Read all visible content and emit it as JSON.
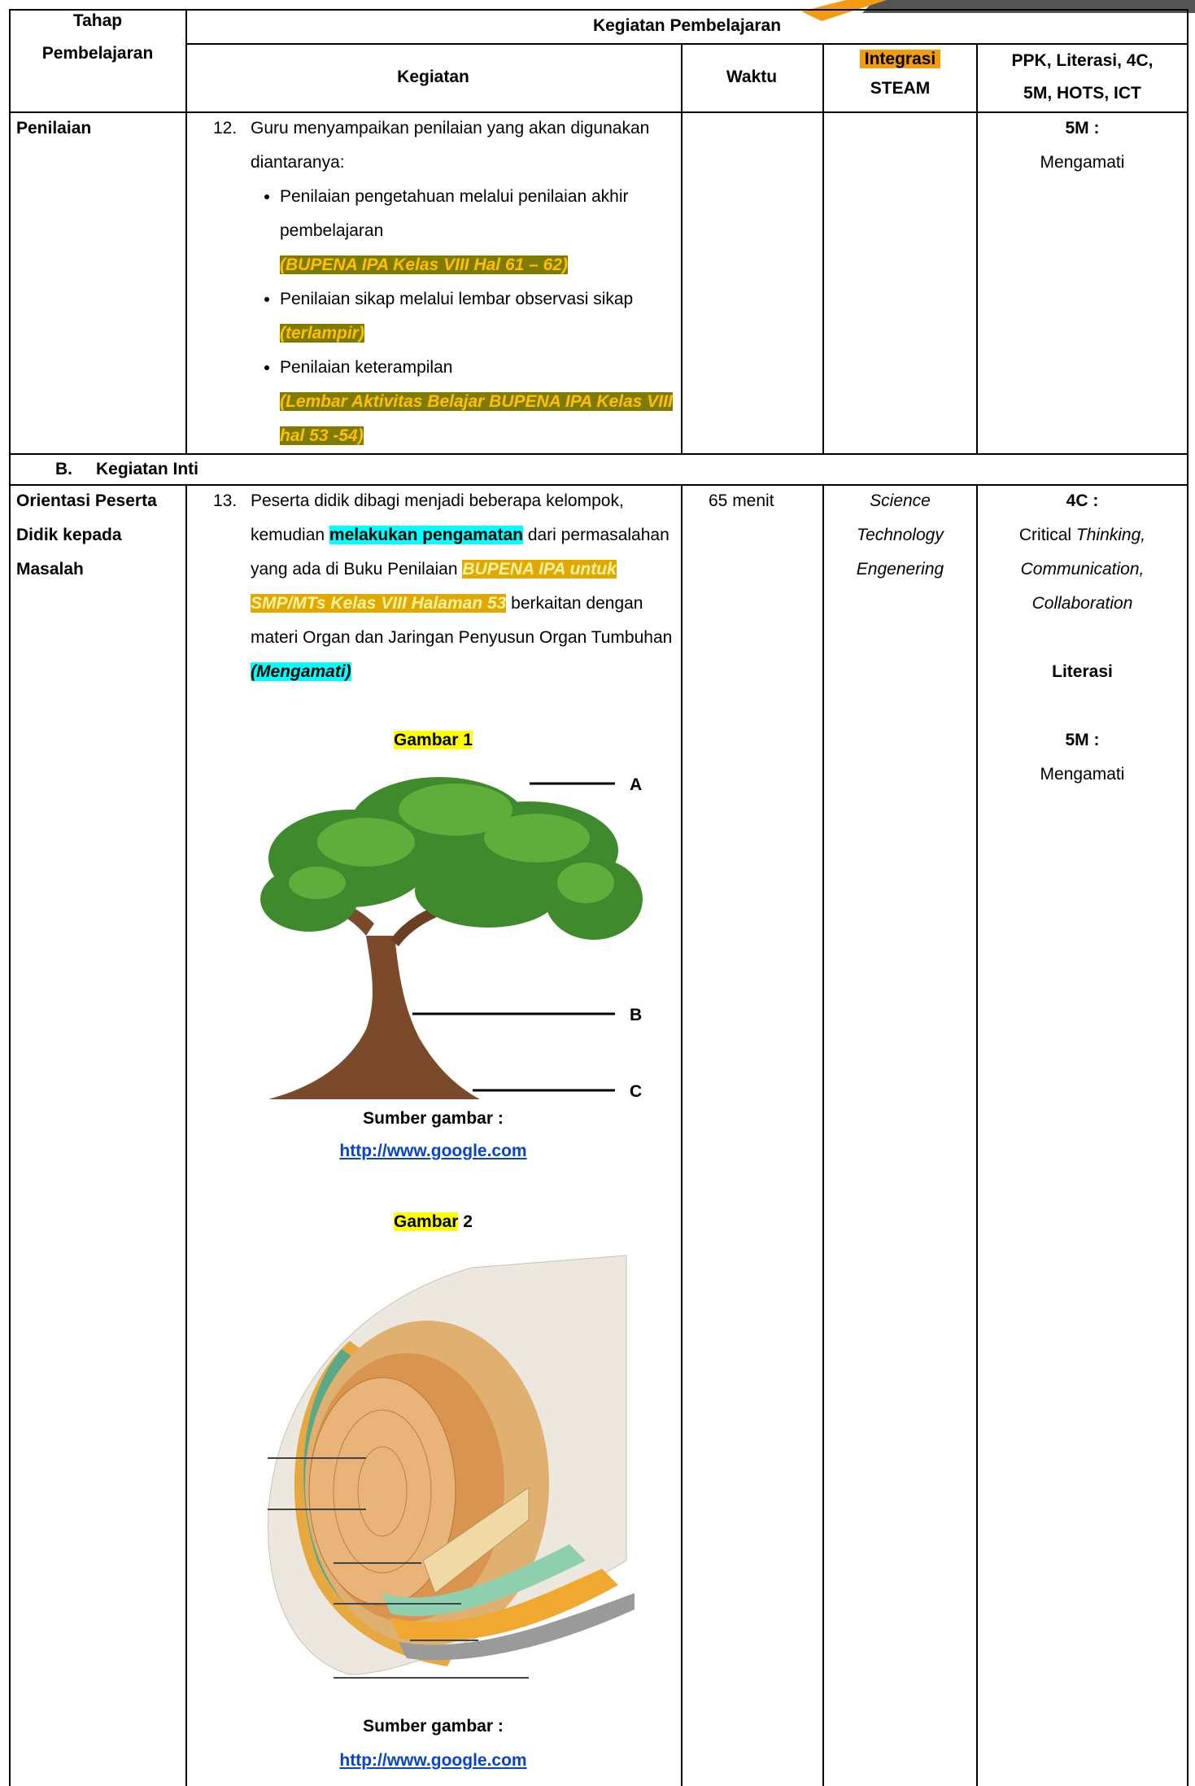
{
  "table": {
    "header": {
      "tahap": "Tahap Pembelajaran",
      "kegiatan_pembelajaran": "Kegiatan Pembelajaran",
      "kegiatan": "Kegiatan",
      "waktu": "Waktu",
      "integrasi": "Integrasi",
      "steam": "STEAM",
      "ppk_1": "PPK, Literasi, 4C,",
      "ppk_2": "5M, HOTS, ICT"
    },
    "penilaian": {
      "stage": "Penilaian",
      "number": "12.",
      "intro": "Guru menyampaikan penilaian yang akan digunakan diantaranya:",
      "bullets": [
        {
          "text": "Penilaian pengetahuan melalui penilaian akhir pembelajaran",
          "ref": "(BUPENA IPA Kelas VIII Hal 61 – 62)"
        },
        {
          "text": "Penilaian sikap melalui lembar observasi sikap",
          "ref": "(terlampir)"
        },
        {
          "text": "Penilaian keterampilan",
          "ref": "(Lembar Aktivitas Belajar BUPENA IPA Kelas VIII hal 53 -54)"
        }
      ],
      "ppk_label": "5M :",
      "ppk_value": "Mengamati"
    },
    "section_b": {
      "letter": "B.",
      "title": "Kegiatan Inti"
    },
    "orientasi": {
      "stage": "Orientasi Peserta Didik kepada Masalah",
      "number": "13.",
      "text_1": "Peserta didik dibagi menjadi beberapa kelompok, kemudian ",
      "highlight": "melakukan pengamatan",
      "text_2": " dari permasalahan yang ada di Buku Penilaian ",
      "ref": "BUPENA IPA untuk SMP/MTs Kelas VIII Halaman 53",
      "text_3": " berkaitan dengan materi Organ dan Jaringan Penyusun Organ Tumbuhan ",
      "activity": "(Mengamati)",
      "figure_1": {
        "title": "Gambar 1",
        "labels": [
          "A",
          "B",
          "C"
        ],
        "source": "Sumber gambar :",
        "link": "http://www.google.com"
      },
      "figure_2": {
        "title_word": "Gambar",
        "title_number": "2",
        "source": "Sumber gambar :",
        "link": "http://www.google.com"
      },
      "waktu": "65 menit",
      "integrasi": [
        "Science",
        "Technology",
        "Engenering"
      ],
      "ppk": {
        "c4_label": "4C :",
        "critical": "Critical ",
        "thinking": "Thinking,",
        "communication": "Communication,",
        "collaboration": "Collaboration",
        "literasi": "Literasi",
        "m5_label": "5M :",
        "m5_value": "Mengamati"
      }
    }
  }
}
